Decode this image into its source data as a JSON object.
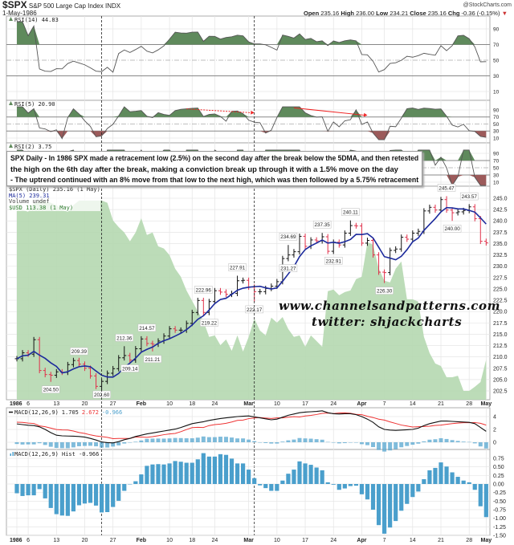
{
  "header": {
    "symbol": "$SPX",
    "name": "S&P 500 Large Cap Index",
    "exchange": "INDX",
    "date": "1-May-1986",
    "source": "@StockCharts.com",
    "quote": {
      "open_label": "Open",
      "open": "235.16",
      "high_label": "High",
      "high": "236.00",
      "low_label": "Low",
      "low": "234.21",
      "close_label": "Close",
      "close": "235.16",
      "chg_label": "Chg",
      "chg": "-0.36 (-0.15%)",
      "chg_icon": "down-triangle-icon"
    }
  },
  "annotation": {
    "line1": "SPX Daily - In 1986 SPX made a retracement low (2.5%) on the second day after the break below the 5DMA, and then retested",
    "line2": "the high on the 6th day after the break, making a conviction break up through it with a 1.5% move on the day",
    "line3": "- The uptrend continued with an 8% move from that low to the next high, which was then followed by a 5.75% retracement"
  },
  "watermark": {
    "line1": "www.channelsandpatterns.com",
    "line2": "twitter: shjackcharts"
  },
  "legend": {
    "price": "$SPX (Daily) 235.16 (1 May)",
    "ma": "MA(5) 239.31",
    "volume": "Volume undef",
    "usd": "$USD 113.38 (1 May)"
  },
  "colors": {
    "up_bar": "#111111",
    "down_bar": "#e0304a",
    "ma": "#1c2a9c",
    "usd_area": "#b5d8b0",
    "overbought": "#5f8a5c",
    "oversold": "#9c5a5a",
    "macd": "#111111",
    "signal": "#ee3333",
    "hist": "#4a9fcc",
    "arrow": "#ee2222"
  },
  "chart_data": [
    {
      "type": "ohlc",
      "title": "$SPX (Daily)",
      "dates": [
        "1986-01-02",
        "1986-01-03",
        "1986-01-06",
        "1986-01-07",
        "1986-01-08",
        "1986-01-09",
        "1986-01-10",
        "1986-01-13",
        "1986-01-14",
        "1986-01-15",
        "1986-01-16",
        "1986-01-17",
        "1986-01-20",
        "1986-01-21",
        "1986-01-22",
        "1986-01-23",
        "1986-01-24",
        "1986-01-27",
        "1986-01-28",
        "1986-01-29",
        "1986-01-30",
        "1986-01-31",
        "1986-02-03",
        "1986-02-04",
        "1986-02-05",
        "1986-02-06",
        "1986-02-07",
        "1986-02-10",
        "1986-02-11",
        "1986-02-12",
        "1986-02-13",
        "1986-02-14",
        "1986-02-18",
        "1986-02-19",
        "1986-02-20",
        "1986-02-21",
        "1986-02-24",
        "1986-02-25",
        "1986-02-26",
        "1986-02-27",
        "1986-02-28",
        "1986-03-03",
        "1986-03-04",
        "1986-03-05",
        "1986-03-06",
        "1986-03-07",
        "1986-03-10",
        "1986-03-11",
        "1986-03-12",
        "1986-03-13",
        "1986-03-14",
        "1986-03-17",
        "1986-03-18",
        "1986-03-19",
        "1986-03-20",
        "1986-03-21",
        "1986-03-24",
        "1986-03-25",
        "1986-03-26",
        "1986-03-27",
        "1986-03-31",
        "1986-04-01",
        "1986-04-02",
        "1986-04-03",
        "1986-04-04",
        "1986-04-07",
        "1986-04-08",
        "1986-04-09",
        "1986-04-10",
        "1986-04-11",
        "1986-04-14",
        "1986-04-15",
        "1986-04-16",
        "1986-04-17",
        "1986-04-18",
        "1986-04-21",
        "1986-04-22",
        "1986-04-23",
        "1986-04-24",
        "1986-04-25",
        "1986-04-28",
        "1986-04-29",
        "1986-04-30",
        "1986-05-01"
      ],
      "close": [
        209.6,
        210.9,
        210.6,
        213.8,
        207.0,
        206.1,
        205.96,
        206.7,
        206.6,
        208.3,
        209.2,
        208.4,
        207.5,
        205.8,
        203.5,
        204.6,
        206.4,
        207.4,
        209.8,
        210.3,
        209.3,
        211.8,
        213.96,
        212.96,
        212.8,
        213.5,
        214.6,
        216.2,
        215.9,
        215.9,
        217.4,
        219.8,
        222.45,
        219.8,
        222.2,
        224.6,
        224.3,
        223.8,
        224.0,
        226.8,
        226.9,
        225.4,
        224.4,
        224.4,
        225.1,
        225.6,
        226.6,
        231.7,
        232.5,
        233.2,
        236.6,
        234.4,
        235.8,
        235.6,
        236.5,
        233.3,
        235.3,
        234.7,
        237.3,
        238.97,
        238.9,
        235.1,
        235.7,
        232.5,
        228.7,
        228.6,
        233.5,
        233.8,
        236.4,
        235.97,
        237.3,
        237.7,
        242.2,
        243.0,
        242.4,
        244.7,
        242.4,
        241.8,
        242.0,
        242.3,
        243.1,
        240.5,
        235.5,
        235.16
      ],
      "ma_period": 5,
      "price_ticks": [
        "245.0",
        "242.5",
        "240.0",
        "237.5",
        "235.0",
        "232.5",
        "230.0",
        "227.5",
        "225.0",
        "222.5",
        "220.0",
        "217.5",
        "215.0",
        "212.5",
        "210.0",
        "207.5",
        "205.0",
        "202.5"
      ],
      "ylim": [
        202.5,
        245.0
      ],
      "price_labels": [
        {
          "i": 6,
          "kind": "low",
          "text": "204.50"
        },
        {
          "i": 11,
          "kind": "high",
          "text": "209.39"
        },
        {
          "i": 15,
          "kind": "low",
          "text": "202.60"
        },
        {
          "i": 19,
          "kind": "high",
          "text": "212.36"
        },
        {
          "i": 20,
          "kind": "low",
          "text": "209.14"
        },
        {
          "i": 23,
          "kind": "high",
          "text": "214.57"
        },
        {
          "i": 24,
          "kind": "low",
          "text": "211.21"
        },
        {
          "i": 33,
          "kind": "high",
          "text": "222.96"
        },
        {
          "i": 34,
          "kind": "low",
          "text": "219.22"
        },
        {
          "i": 39,
          "kind": "high",
          "text": "227.91"
        },
        {
          "i": 42,
          "kind": "low",
          "text": "222.17"
        },
        {
          "i": 48,
          "kind": "high",
          "text": "234.69"
        },
        {
          "i": 48,
          "kind": "low",
          "text": "231.27"
        },
        {
          "i": 54,
          "kind": "high",
          "text": "237.35"
        },
        {
          "i": 56,
          "kind": "low",
          "text": "232.91"
        },
        {
          "i": 59,
          "kind": "high",
          "text": "240.11"
        },
        {
          "i": 65,
          "kind": "low",
          "text": "226.30"
        },
        {
          "i": 76,
          "kind": "high",
          "text": "245.47"
        },
        {
          "i": 77,
          "kind": "low",
          "text": "240.00"
        },
        {
          "i": 80,
          "kind": "high",
          "text": "243.57"
        }
      ],
      "usd": {
        "name": "$USD",
        "ylim": [
          112.0,
          120.5
        ],
        "values": [
          120.4,
          120.0,
          119.9,
          120.3,
          120.4,
          120.4,
          120.3,
          120.2,
          120.0,
          119.9,
          120.2,
          120.4,
          120.4,
          120.4,
          120.4,
          120.4,
          120.3,
          119.52,
          119.23,
          118.99,
          118.6,
          118.99,
          119.62,
          118.88,
          118.99,
          118.38,
          118.28,
          117.99,
          117.39,
          117.04,
          116.43,
          115.97,
          115.51,
          115.09,
          114.38,
          114.45,
          114.02,
          114.27,
          113.77,
          114.45,
          113.74,
          114.38,
          115.19,
          114.66,
          114.45,
          115.23,
          115.01,
          115.26,
          114.73,
          114.38,
          114.45,
          113.95,
          114.45,
          114.2,
          113.95,
          116.4,
          116.47,
          116.22,
          116.36,
          116.43,
          116.93,
          117.04,
          118.56,
          118.45,
          117.39,
          116.86,
          116.79,
          117.39,
          117.71,
          116.04,
          116.04,
          115.94,
          114.38,
          113.67,
          113.21,
          113.1,
          112.6,
          112.6,
          112.67,
          112.0,
          112.0,
          112.18,
          112.39,
          113.38
        ]
      },
      "vertical_markers": [
        15,
        42
      ],
      "x_ticks": [
        {
          "i": 0,
          "label": "1986",
          "bold": true
        },
        {
          "i": 2,
          "label": "6"
        },
        {
          "i": 7,
          "label": "13"
        },
        {
          "i": 12,
          "label": "20"
        },
        {
          "i": 17,
          "label": "27"
        },
        {
          "i": 22,
          "label": "Feb",
          "bold": true
        },
        {
          "i": 27,
          "label": "10"
        },
        {
          "i": 31,
          "label": "18"
        },
        {
          "i": 35,
          "label": "24"
        },
        {
          "i": 41,
          "label": "Mar",
          "bold": true
        },
        {
          "i": 46,
          "label": "10"
        },
        {
          "i": 51,
          "label": "17"
        },
        {
          "i": 56,
          "label": "24"
        },
        {
          "i": 61,
          "label": "Apr",
          "bold": true
        },
        {
          "i": 65,
          "label": "7"
        },
        {
          "i": 70,
          "label": "14"
        },
        {
          "i": 75,
          "label": "21"
        },
        {
          "i": 80,
          "label": "28"
        },
        {
          "i": 83,
          "label": "May",
          "bold": true
        }
      ]
    },
    {
      "type": "line",
      "title": "RSI(14) 44.83",
      "period": 14,
      "ticks": [
        "90",
        "70",
        "50",
        "30",
        "10"
      ],
      "ylim": [
        0,
        100
      ]
    },
    {
      "type": "line",
      "title": "RSI(5) 20.90",
      "period": 5,
      "ticks": [
        "90",
        "70",
        "50",
        "30",
        "10"
      ],
      "ylim": [
        0,
        100
      ],
      "arrows": [
        {
          "from_i": 30,
          "from_v": 93,
          "to_i": 42,
          "to_v": 82,
          "dashed": true
        },
        {
          "from_i": 49,
          "from_v": 96,
          "to_i": 62,
          "to_v": 75,
          "dashed": false
        }
      ]
    },
    {
      "type": "line",
      "title": "RSI(2) 3.75",
      "period": 2,
      "ticks": [
        "90",
        "70",
        "50",
        "30",
        "10"
      ],
      "ylim": [
        0,
        100
      ]
    },
    {
      "type": "line",
      "title_prefix": "MACD(12,26,9)",
      "macd_label": "1.705",
      "signal_label": "2.672",
      "hist_label": "-0.966",
      "ticks": [
        "4",
        "2",
        "0"
      ],
      "ylim": [
        -1.5,
        5.5
      ],
      "macd": [
        2.86,
        2.75,
        2.65,
        2.6,
        2.4,
        2.0,
        1.5,
        1.1,
        1.0,
        0.97,
        0.95,
        0.9,
        0.8,
        0.6,
        0.35,
        0.05,
        -0.05,
        -0.1,
        0.1,
        0.4,
        0.6,
        0.9,
        1.1,
        1.3,
        1.45,
        1.6,
        1.75,
        1.9,
        2.05,
        2.3,
        2.6,
        2.9,
        3.05,
        3.2,
        3.4,
        3.55,
        3.7,
        3.8,
        3.9,
        4.0,
        4.05,
        4.1,
        3.95,
        3.8,
        3.65,
        3.5,
        3.6,
        3.9,
        4.2,
        4.4,
        4.6,
        4.7,
        4.75,
        4.8,
        4.9,
        4.6,
        4.45,
        4.4,
        4.45,
        4.45,
        4.3,
        4.0,
        3.6,
        3.1,
        2.4,
        2.0,
        1.9,
        1.85,
        1.9,
        1.95,
        2.0,
        2.2,
        2.6,
        2.9,
        3.1,
        3.3,
        3.3,
        3.25,
        3.2,
        3.15,
        3.1,
        2.9,
        2.3,
        1.705
      ]
    },
    {
      "type": "bar",
      "title": "MACD(12,26,9) Hist -0.966",
      "ticks": [
        "0.75",
        "0.50",
        "0.25",
        "0.00",
        "-0.25",
        "-0.50",
        "-0.75",
        "-1.00",
        "-1.25",
        "-1.50"
      ],
      "ylim": [
        -1.55,
        0.95
      ],
      "values": [
        -0.27,
        -0.35,
        -0.33,
        -0.33,
        -0.15,
        -0.42,
        -0.7,
        -0.88,
        -0.92,
        -0.93,
        -0.8,
        -0.62,
        -0.57,
        -0.55,
        -0.63,
        -0.83,
        -0.82,
        -0.67,
        -0.49,
        -0.2,
        0.0,
        0.08,
        0.28,
        0.53,
        0.57,
        0.58,
        0.57,
        0.6,
        0.67,
        0.65,
        0.62,
        0.62,
        0.72,
        0.9,
        0.8,
        0.8,
        0.87,
        0.85,
        0.74,
        0.6,
        0.6,
        0.42,
        0.17,
        -0.04,
        -0.12,
        -0.2,
        -0.2,
        0.1,
        0.3,
        0.42,
        0.66,
        0.6,
        0.56,
        0.48,
        0.4,
        0.05,
        -0.02,
        -0.17,
        -0.13,
        -0.06,
        -0.05,
        -0.3,
        -0.45,
        -0.75,
        -1.2,
        -1.45,
        -1.27,
        -1.08,
        -0.78,
        -0.58,
        -0.38,
        -0.22,
        0.14,
        0.4,
        0.47,
        0.63,
        0.51,
        0.34,
        0.21,
        0.1,
        0.05,
        -0.17,
        -0.65,
        -0.966
      ]
    }
  ]
}
